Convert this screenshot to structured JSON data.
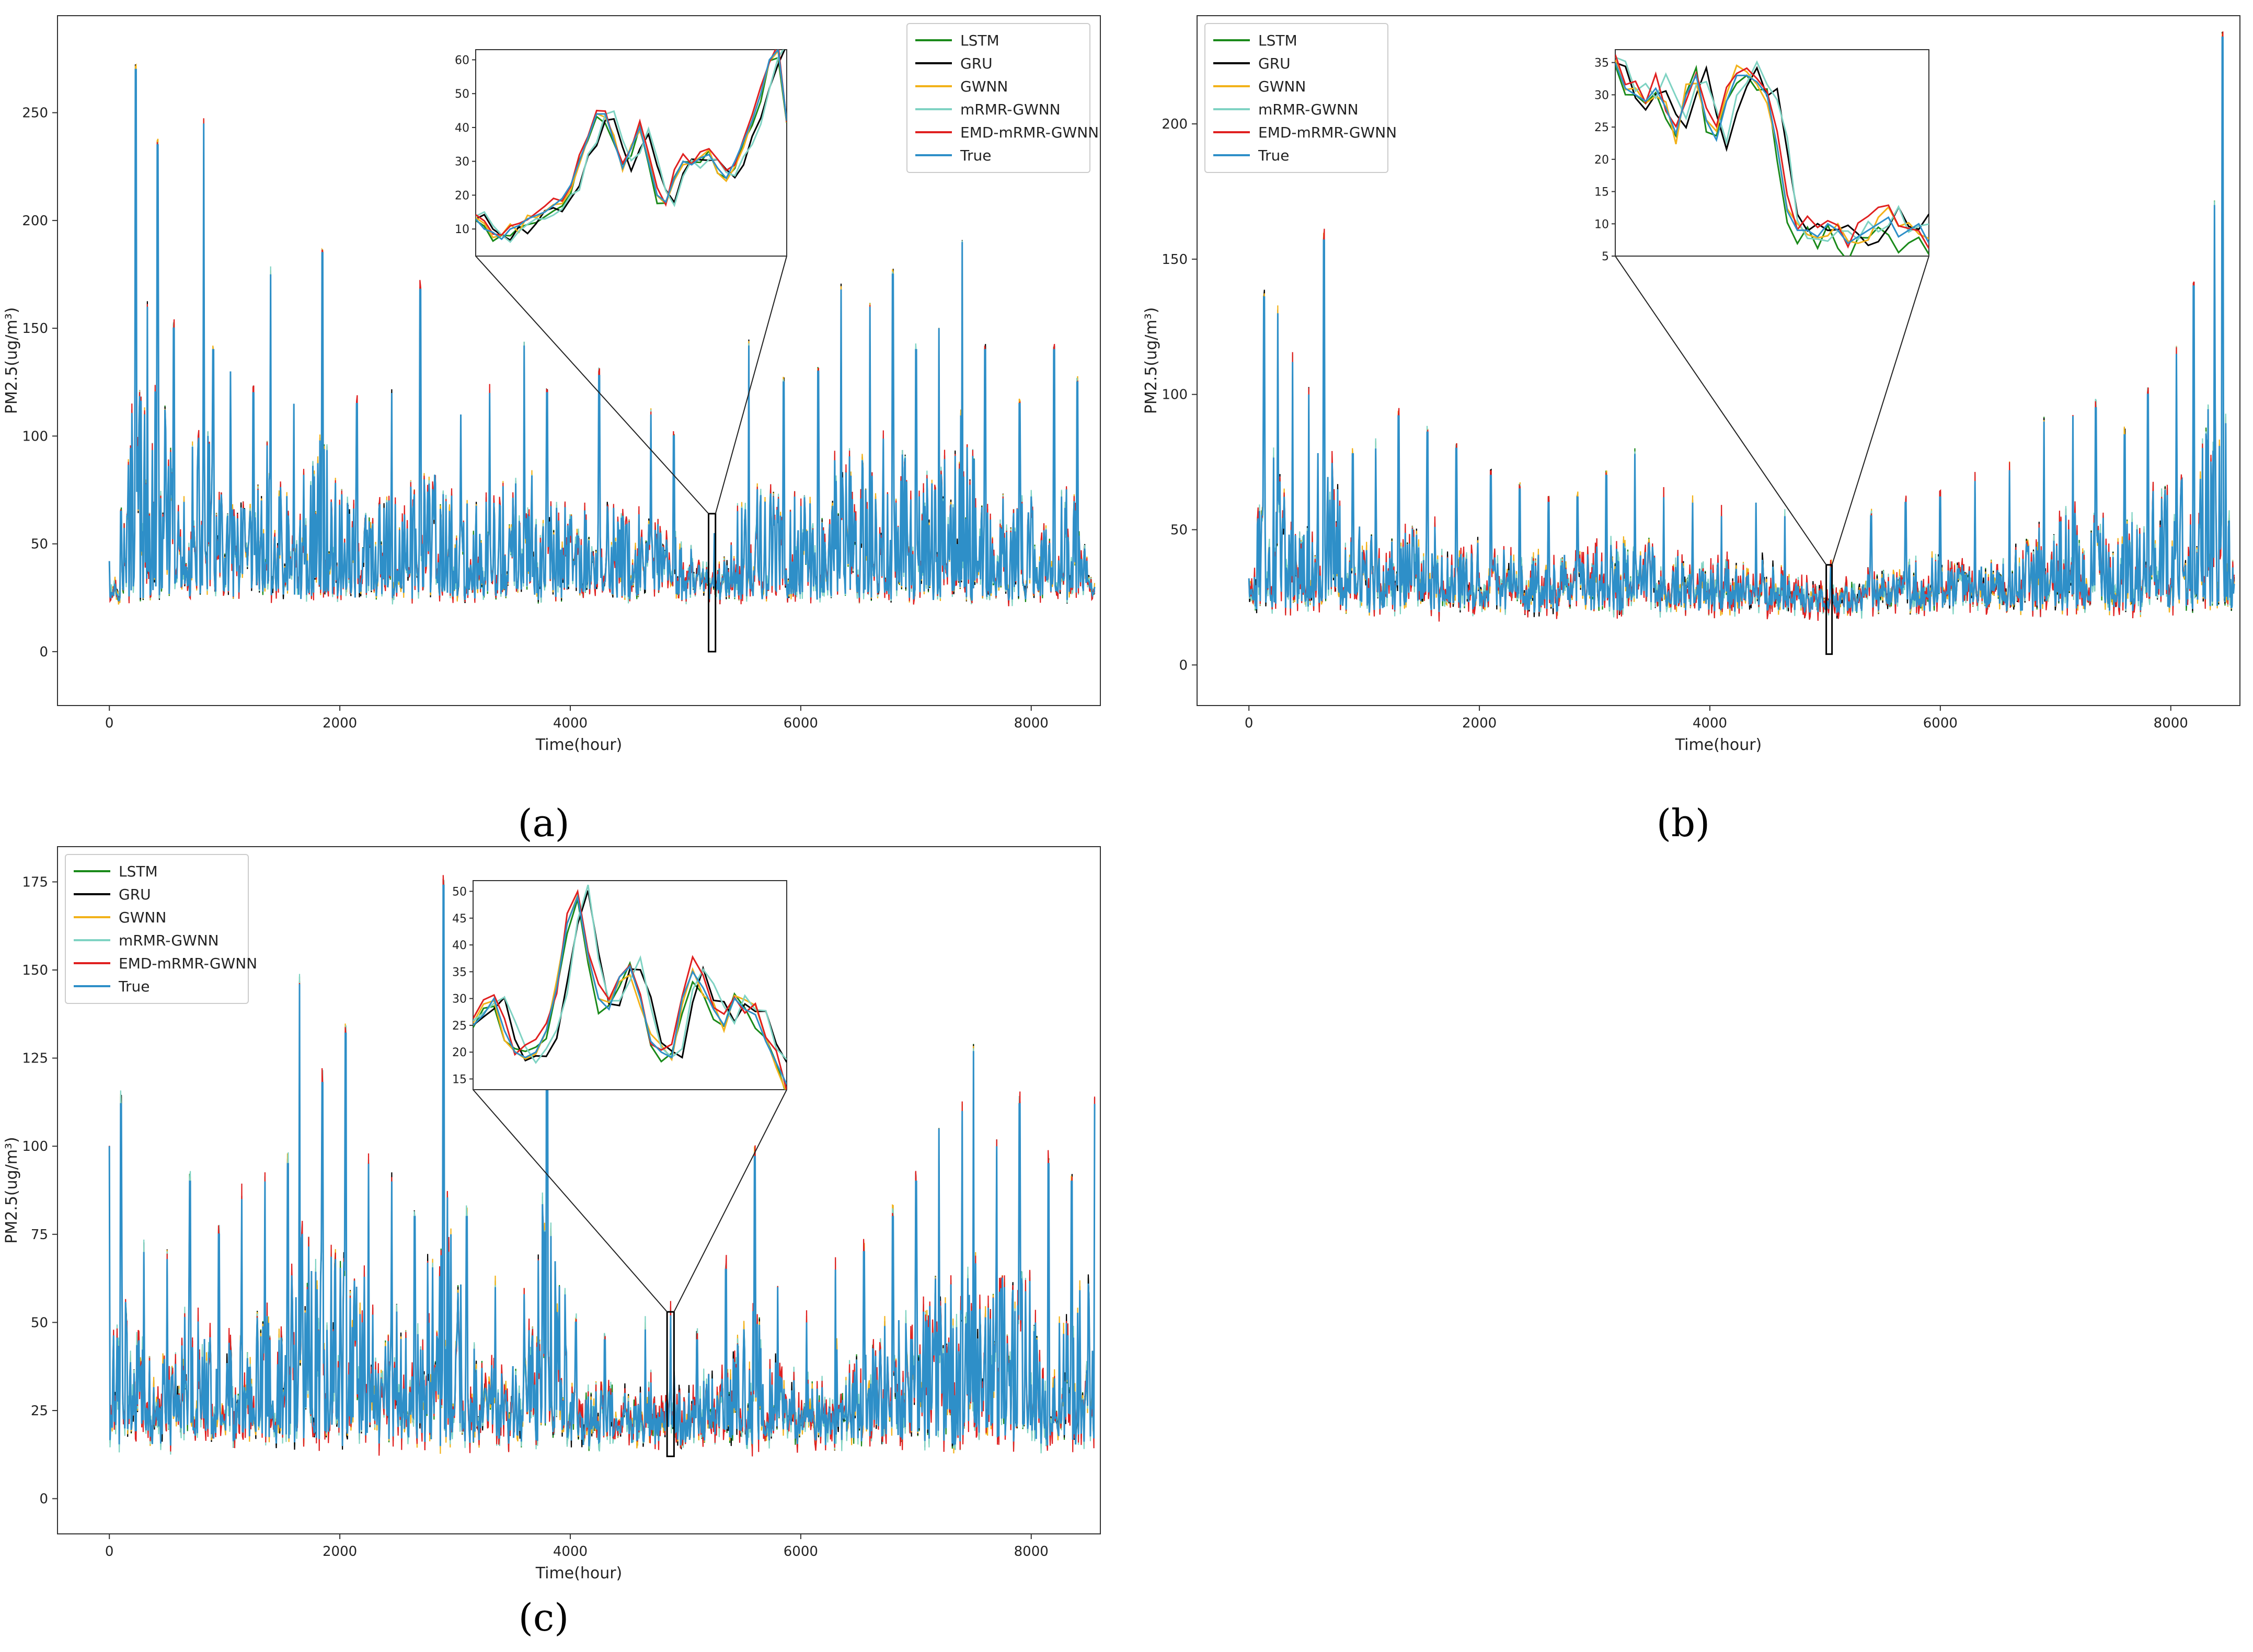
{
  "figure": {
    "captions": [
      "(a)",
      "(b)",
      "(c)"
    ]
  },
  "series_colors": {
    "LSTM": "#1a8a1a",
    "GRU": "#000000",
    "GWNN": "#f2b21a",
    "mRMR-GWNN": "#7fd3c3",
    "EMD-mRMR-GWNN": "#e02020",
    "True": "#2e8fc8"
  },
  "chart_data": [
    {
      "type": "line",
      "panel": "a",
      "xlabel": "Time(hour)",
      "ylabel": "PM2.5(ug/m³)",
      "xlim": [
        -450,
        8600
      ],
      "ylim": [
        -25,
        295
      ],
      "xticks": [
        0,
        2000,
        4000,
        6000,
        8000
      ],
      "yticks": [
        0,
        50,
        100,
        150,
        200,
        250
      ],
      "legend": "top-right",
      "series": [
        {
          "name": "LSTM"
        },
        {
          "name": "GRU"
        },
        {
          "name": "GWNN"
        },
        {
          "name": "mRMR-GWNN"
        },
        {
          "name": "EMD-mRMR-GWNN"
        },
        {
          "name": "True"
        }
      ],
      "peaks": [
        [
          0,
          42
        ],
        [
          100,
          65
        ],
        [
          230,
          270
        ],
        [
          330,
          160
        ],
        [
          420,
          235
        ],
        [
          560,
          150
        ],
        [
          720,
          95
        ],
        [
          820,
          245
        ],
        [
          900,
          140
        ],
        [
          1050,
          130
        ],
        [
          1250,
          120
        ],
        [
          1400,
          175
        ],
        [
          1600,
          115
        ],
        [
          1850,
          185
        ],
        [
          2150,
          115
        ],
        [
          2450,
          120
        ],
        [
          2700,
          168
        ],
        [
          3050,
          110
        ],
        [
          3300,
          120
        ],
        [
          3600,
          142
        ],
        [
          3800,
          120
        ],
        [
          4250,
          128
        ],
        [
          4700,
          110
        ],
        [
          4900,
          100
        ],
        [
          5250,
          55
        ],
        [
          5550,
          142
        ],
        [
          5850,
          125
        ],
        [
          6150,
          130
        ],
        [
          6350,
          168
        ],
        [
          6600,
          160
        ],
        [
          6800,
          175
        ],
        [
          7000,
          140
        ],
        [
          7200,
          150
        ],
        [
          7400,
          190
        ],
        [
          7600,
          140
        ],
        [
          7900,
          115
        ],
        [
          8200,
          140
        ],
        [
          8400,
          125
        ],
        [
          8550,
          30
        ]
      ],
      "zoom_window": {
        "x": [
          5200,
          5260
        ],
        "y": [
          0,
          64
        ]
      },
      "inset": {
        "ylim": [
          2,
          63
        ],
        "yticks": [
          10,
          20,
          30,
          40,
          50,
          60
        ],
        "true_values": [
          13,
          10,
          9,
          7,
          10,
          11,
          13,
          14,
          15,
          17,
          19,
          23,
          30,
          37,
          44,
          44,
          36,
          28,
          34,
          40,
          30,
          20,
          18,
          25,
          30,
          29,
          31,
          32,
          28,
          25,
          30,
          36,
          42,
          50,
          60,
          63,
          42
        ]
      }
    },
    {
      "type": "line",
      "panel": "b",
      "xlabel": "Time(hour)",
      "ylabel": "PM2.5(ug/m³)",
      "xlim": [
        -450,
        8600
      ],
      "ylim": [
        -15,
        240
      ],
      "xticks": [
        0,
        2000,
        4000,
        6000,
        8000
      ],
      "yticks": [
        0,
        50,
        100,
        150,
        200
      ],
      "legend": "top-left",
      "series": [
        {
          "name": "LSTM"
        },
        {
          "name": "GRU"
        },
        {
          "name": "GWNN"
        },
        {
          "name": "mRMR-GWNN"
        },
        {
          "name": "EMD-mRMR-GWNN"
        },
        {
          "name": "True"
        }
      ],
      "peaks": [
        [
          0,
          32
        ],
        [
          130,
          136
        ],
        [
          250,
          130
        ],
        [
          380,
          112
        ],
        [
          520,
          100
        ],
        [
          650,
          157
        ],
        [
          900,
          78
        ],
        [
          1100,
          80
        ],
        [
          1300,
          92
        ],
        [
          1550,
          86
        ],
        [
          1800,
          80
        ],
        [
          2100,
          70
        ],
        [
          2350,
          65
        ],
        [
          2600,
          60
        ],
        [
          2850,
          62
        ],
        [
          3100,
          70
        ],
        [
          3350,
          78
        ],
        [
          3600,
          62
        ],
        [
          3850,
          60
        ],
        [
          4100,
          55
        ],
        [
          4400,
          60
        ],
        [
          4650,
          55
        ],
        [
          5050,
          36
        ],
        [
          5400,
          55
        ],
        [
          5700,
          60
        ],
        [
          6000,
          62
        ],
        [
          6300,
          68
        ],
        [
          6600,
          72
        ],
        [
          6900,
          90
        ],
        [
          7150,
          92
        ],
        [
          7350,
          95
        ],
        [
          7600,
          85
        ],
        [
          7800,
          100
        ],
        [
          8050,
          115
        ],
        [
          8200,
          140
        ],
        [
          8380,
          170
        ],
        [
          8450,
          232
        ],
        [
          8550,
          30
        ]
      ],
      "zoom_window": {
        "x": [
          5010,
          5060
        ],
        "y": [
          4,
          37
        ]
      },
      "inset": {
        "ylim": [
          5,
          37
        ],
        "yticks": [
          5,
          10,
          15,
          20,
          25,
          30,
          35
        ],
        "true_values": [
          35,
          31,
          30,
          29,
          31,
          28,
          24,
          30,
          33,
          26,
          23,
          29,
          33,
          33,
          32,
          30,
          22,
          12,
          9,
          9,
          8,
          10,
          9,
          7,
          8,
          9,
          10,
          11,
          8,
          9,
          10,
          7
        ]
      }
    },
    {
      "type": "line",
      "panel": "c",
      "xlabel": "Time(hour)",
      "ylabel": "PM2.5(ug/m³)",
      "xlim": [
        -450,
        8600
      ],
      "ylim": [
        -10,
        185
      ],
      "xticks": [
        0,
        2000,
        4000,
        6000,
        8000
      ],
      "yticks": [
        0,
        25,
        50,
        75,
        100,
        125,
        150,
        175
      ],
      "legend": "top-left",
      "series": [
        {
          "name": "LSTM"
        },
        {
          "name": "GRU"
        },
        {
          "name": "GWNN"
        },
        {
          "name": "mRMR-GWNN"
        },
        {
          "name": "EMD-mRMR-GWNN"
        },
        {
          "name": "True"
        }
      ],
      "peaks": [
        [
          0,
          100
        ],
        [
          100,
          112
        ],
        [
          300,
          70
        ],
        [
          500,
          68
        ],
        [
          700,
          90
        ],
        [
          950,
          75
        ],
        [
          1150,
          85
        ],
        [
          1350,
          90
        ],
        [
          1550,
          95
        ],
        [
          1650,
          146
        ],
        [
          1850,
          118
        ],
        [
          2050,
          132
        ],
        [
          2250,
          95
        ],
        [
          2450,
          90
        ],
        [
          2650,
          80
        ],
        [
          2900,
          174
        ],
        [
          3100,
          80
        ],
        [
          3350,
          60
        ],
        [
          3600,
          58
        ],
        [
          3800,
          168
        ],
        [
          4050,
          50
        ],
        [
          4300,
          45
        ],
        [
          4650,
          48
        ],
        [
          4870,
          52
        ],
        [
          5100,
          45
        ],
        [
          5350,
          65
        ],
        [
          5600,
          97
        ],
        [
          5800,
          60
        ],
        [
          6050,
          50
        ],
        [
          6300,
          65
        ],
        [
          6550,
          70
        ],
        [
          6800,
          80
        ],
        [
          7000,
          90
        ],
        [
          7200,
          105
        ],
        [
          7400,
          110
        ],
        [
          7500,
          127
        ],
        [
          7700,
          100
        ],
        [
          7900,
          112
        ],
        [
          8150,
          95
        ],
        [
          8350,
          90
        ],
        [
          8550,
          112
        ]
      ],
      "zoom_window": {
        "x": [
          4840,
          4900
        ],
        "y": [
          12,
          53
        ]
      },
      "inset": {
        "ylim": [
          13,
          52
        ],
        "yticks": [
          15,
          20,
          25,
          30,
          35,
          40,
          45,
          50
        ],
        "true_values": [
          25,
          27,
          30,
          24,
          20,
          19,
          20,
          24,
          32,
          44,
          49,
          38,
          30,
          28,
          34,
          36,
          30,
          22,
          20,
          19,
          30,
          35,
          32,
          28,
          25,
          30,
          28,
          27,
          22,
          18,
          14
        ]
      }
    }
  ]
}
